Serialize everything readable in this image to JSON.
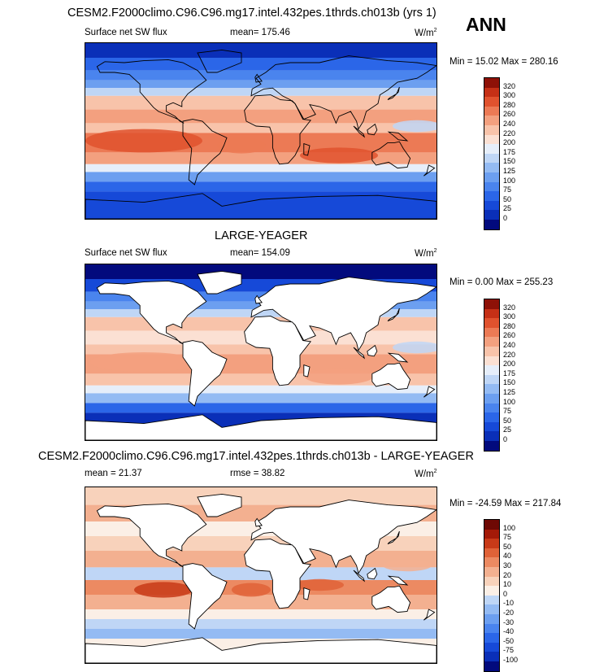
{
  "season": "ANN",
  "panels": [
    {
      "title": "CESM2.F2000climo.C96.C96.mg17.intel.432pes.1thrds.ch013b (yrs 1)",
      "left_label": "Surface net SW flux",
      "center_label": "mean= 175.46",
      "units": "W/m",
      "units_sup": "2",
      "minmax": "Min =  15.02 Max = 280.16",
      "mask_land": false
    },
    {
      "title": "LARGE-YEAGER",
      "left_label": "Surface net SW flux",
      "center_label": "mean= 154.09",
      "units": "W/m",
      "units_sup": "2",
      "minmax": "Min =   0.00 Max = 255.23",
      "mask_land": true
    },
    {
      "title": "CESM2.F2000climo.C96.C96.mg17.intel.432pes.1thrds.ch013b - LARGE-YEAGER",
      "left_label": "mean =  21.37",
      "center_label": "rmse =  38.82",
      "units": "W/m",
      "units_sup": "2",
      "minmax": "Min = -24.59 Max = 217.84",
      "mask_land": true
    }
  ],
  "chart_data": [
    {
      "type": "heatmap",
      "title": "CESM2.F2000climo.C96.C96.mg17.intel.432pes.1thrds.ch013b (yrs 1)",
      "variable": "Surface net SW flux",
      "units": "W/m2",
      "mean": 175.46,
      "min": 15.02,
      "max": 280.16,
      "colorbar_levels": [
        0,
        25,
        50,
        75,
        100,
        125,
        150,
        175,
        200,
        220,
        240,
        260,
        280,
        300,
        320
      ],
      "colorbar_colors": [
        "#020a7d",
        "#0a2fb8",
        "#1649d8",
        "#2b66e8",
        "#4a84ee",
        "#6c9ff0",
        "#94bbf3",
        "#bfd6f6",
        "#e6eefa",
        "#fbe0d3",
        "#f8c3aa",
        "#f3a07f",
        "#ec7a55",
        "#e0522e",
        "#c53016",
        "#8e1107"
      ]
    },
    {
      "type": "heatmap",
      "title": "LARGE-YEAGER",
      "variable": "Surface net SW flux",
      "units": "W/m2",
      "mean": 154.09,
      "min": 0.0,
      "max": 255.23,
      "colorbar_levels": [
        0,
        25,
        50,
        75,
        100,
        125,
        150,
        175,
        200,
        220,
        240,
        260,
        280,
        300,
        320
      ],
      "colorbar_colors": [
        "#020a7d",
        "#0a2fb8",
        "#1649d8",
        "#2b66e8",
        "#4a84ee",
        "#6c9ff0",
        "#94bbf3",
        "#bfd6f6",
        "#e6eefa",
        "#fbe0d3",
        "#f8c3aa",
        "#f3a07f",
        "#ec7a55",
        "#e0522e",
        "#c53016",
        "#8e1107"
      ]
    },
    {
      "type": "heatmap",
      "title": "CESM2.F2000climo.C96.C96.mg17.intel.432pes.1thrds.ch013b - LARGE-YEAGER",
      "units": "W/m2",
      "mean": 21.37,
      "rmse": 38.82,
      "min": -24.59,
      "max": 217.84,
      "colorbar_levels": [
        -100,
        -75,
        -50,
        -40,
        -30,
        -20,
        -10,
        0,
        10,
        20,
        30,
        40,
        50,
        75,
        100
      ],
      "colorbar_colors": [
        "#020a7d",
        "#0a2fb8",
        "#1649d8",
        "#2b66e8",
        "#4a84ee",
        "#6c9ff0",
        "#94bbf3",
        "#bfd6f6",
        "#fbefe6",
        "#f8d2bb",
        "#f3b090",
        "#ec8a62",
        "#e06238",
        "#c83a18",
        "#a41a08",
        "#6e0904"
      ]
    }
  ]
}
